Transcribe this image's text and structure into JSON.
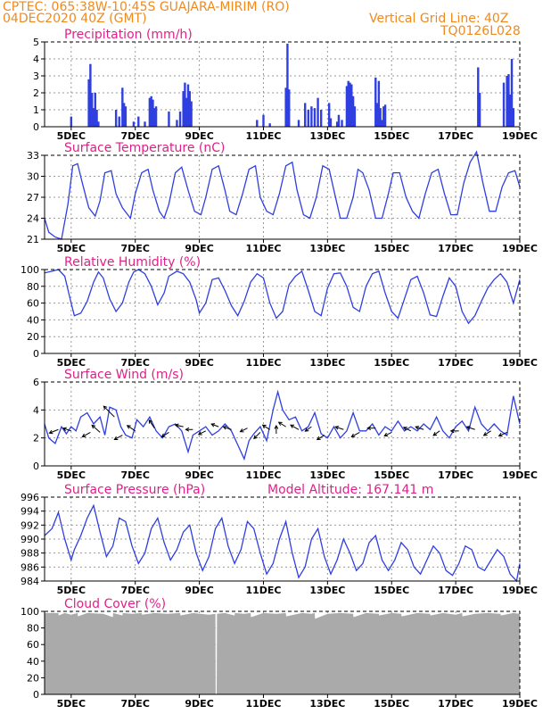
{
  "header": {
    "line1_left": "CPTEC:   065:38W-10:45S   GUAJARA-MIRIM (RO)",
    "line2_left": "04DEC2020 40Z (GMT)",
    "line2_right": "Vertical Grid Line: 40Z",
    "line3_right": "TQ0126L028"
  },
  "colors": {
    "header": "#f08a1c",
    "title": "#e0208a",
    "series": "#2f3fe0",
    "cloud": "#aaaaaa",
    "grid": "#9a9a9a"
  },
  "x_axis": {
    "labels": [
      "5DEC",
      "7DEC",
      "9DEC",
      "11DEC",
      "13DEC",
      "15DEC",
      "17DEC",
      "19DEC"
    ],
    "positions": [
      5,
      7,
      9,
      11,
      13,
      15,
      17,
      19
    ],
    "range": [
      4.17,
      19.0
    ]
  },
  "chart_data": [
    {
      "id": "precip",
      "type": "bar",
      "title": "Precipitation (mm/h)",
      "ylim": [
        0,
        5
      ],
      "yticks": [
        0,
        1,
        2,
        3,
        4,
        5
      ],
      "x": [
        5.0,
        5.55,
        5.6,
        5.65,
        5.7,
        5.75,
        5.8,
        5.85,
        6.4,
        6.5,
        6.6,
        6.65,
        6.7,
        6.95,
        7.1,
        7.3,
        7.45,
        7.5,
        7.55,
        7.6,
        7.65,
        8.05,
        8.3,
        8.4,
        8.5,
        8.55,
        8.6,
        8.65,
        8.7,
        8.75,
        10.8,
        11.0,
        11.2,
        11.7,
        11.75,
        11.8,
        12.1,
        12.3,
        12.4,
        12.5,
        12.6,
        12.7,
        12.8,
        13.05,
        13.1,
        13.3,
        13.35,
        13.45,
        13.6,
        13.65,
        13.7,
        13.75,
        13.8,
        13.85,
        14.5,
        14.55,
        14.6,
        14.65,
        14.7,
        14.75,
        14.8,
        17.7,
        17.75,
        18.5,
        18.6,
        18.65,
        18.7,
        18.75,
        18.8
      ],
      "values": [
        0.6,
        2.8,
        3.7,
        2.0,
        1.1,
        2.0,
        1.0,
        0.3,
        1.0,
        0.6,
        2.3,
        1.4,
        1.2,
        0.3,
        0.6,
        0.3,
        1.7,
        1.8,
        1.6,
        1.1,
        1.2,
        0.9,
        0.4,
        0.9,
        2.1,
        2.6,
        1.7,
        2.5,
        2.1,
        1.5,
        0.4,
        0.7,
        0.2,
        2.3,
        4.9,
        2.2,
        0.4,
        1.4,
        1.0,
        1.2,
        1.1,
        1.7,
        1.0,
        1.4,
        0.5,
        0.3,
        0.7,
        0.4,
        2.4,
        2.7,
        2.6,
        2.5,
        1.8,
        1.2,
        2.9,
        1.4,
        2.7,
        1.1,
        0.4,
        1.2,
        1.3,
        3.5,
        2.0,
        2.6,
        3.0,
        3.1,
        1.9,
        4.0,
        1.1
      ]
    },
    {
      "id": "temp",
      "type": "line",
      "title": "Surface Temperature (nC)",
      "ylim": [
        21,
        33
      ],
      "yticks": [
        21,
        24,
        27,
        30,
        33
      ],
      "x": [
        4.17,
        4.3,
        4.5,
        4.7,
        4.9,
        5.05,
        5.2,
        5.35,
        5.55,
        5.75,
        5.9,
        6.05,
        6.25,
        6.4,
        6.6,
        6.85,
        7.0,
        7.2,
        7.4,
        7.55,
        7.75,
        7.9,
        8.05,
        8.25,
        8.45,
        8.65,
        8.85,
        9.05,
        9.2,
        9.4,
        9.6,
        9.8,
        9.95,
        10.15,
        10.35,
        10.55,
        10.75,
        10.9,
        11.1,
        11.3,
        11.5,
        11.7,
        11.9,
        12.05,
        12.25,
        12.45,
        12.65,
        12.85,
        13.05,
        13.2,
        13.4,
        13.6,
        13.8,
        13.95,
        14.1,
        14.3,
        14.5,
        14.7,
        14.9,
        15.05,
        15.25,
        15.45,
        15.65,
        15.85,
        16.05,
        16.25,
        16.45,
        16.65,
        16.85,
        17.05,
        17.25,
        17.45,
        17.65,
        17.85,
        18.05,
        18.25,
        18.45,
        18.65,
        18.85,
        19.0
      ],
      "values": [
        24.0,
        22.0,
        21.3,
        21.0,
        26.0,
        31.5,
        31.8,
        29.0,
        25.5,
        24.3,
        26.5,
        30.5,
        30.8,
        27.5,
        25.5,
        24.0,
        27.5,
        30.5,
        31.0,
        28.0,
        25.0,
        24.0,
        26.0,
        30.5,
        31.3,
        28.0,
        25.0,
        24.5,
        27.0,
        31.0,
        31.5,
        28.0,
        25.0,
        24.5,
        27.5,
        31.0,
        31.5,
        27.0,
        25.0,
        24.5,
        27.5,
        31.5,
        32.0,
        28.0,
        24.5,
        24.0,
        27.0,
        31.5,
        31.0,
        28.0,
        24.0,
        24.0,
        27.0,
        31.0,
        30.5,
        28.0,
        24.0,
        24.0,
        27.5,
        30.5,
        30.5,
        27.0,
        25.0,
        24.0,
        27.5,
        30.5,
        31.0,
        27.5,
        24.5,
        24.5,
        29.0,
        32.0,
        33.5,
        29.0,
        25.0,
        25.0,
        28.5,
        30.5,
        30.8,
        28.5
      ]
    },
    {
      "id": "rh",
      "type": "line",
      "title": "Relative Humidity (%)",
      "ylim": [
        0,
        100
      ],
      "yticks": [
        0,
        20,
        40,
        60,
        80,
        100
      ],
      "x": [
        4.17,
        4.4,
        4.6,
        4.8,
        5.0,
        5.1,
        5.3,
        5.5,
        5.7,
        5.85,
        6.0,
        6.2,
        6.4,
        6.6,
        6.8,
        6.95,
        7.1,
        7.3,
        7.5,
        7.7,
        7.9,
        8.05,
        8.3,
        8.5,
        8.7,
        8.9,
        9.0,
        9.2,
        9.4,
        9.6,
        9.8,
        10.0,
        10.2,
        10.4,
        10.6,
        10.8,
        11.0,
        11.2,
        11.4,
        11.6,
        11.8,
        12.0,
        12.2,
        12.4,
        12.6,
        12.8,
        13.0,
        13.2,
        13.4,
        13.6,
        13.8,
        14.0,
        14.2,
        14.4,
        14.6,
        14.8,
        15.0,
        15.2,
        15.4,
        15.6,
        15.8,
        16.0,
        16.2,
        16.4,
        16.6,
        16.8,
        17.0,
        17.2,
        17.4,
        17.6,
        17.8,
        18.0,
        18.2,
        18.4,
        18.6,
        18.8,
        19.0
      ],
      "values": [
        96,
        98,
        100,
        92,
        60,
        45,
        48,
        62,
        85,
        97,
        90,
        65,
        50,
        60,
        85,
        97,
        100,
        95,
        80,
        58,
        72,
        92,
        98,
        95,
        85,
        64,
        48,
        60,
        88,
        90,
        75,
        57,
        45,
        62,
        85,
        95,
        90,
        60,
        42,
        50,
        82,
        92,
        98,
        75,
        50,
        45,
        78,
        95,
        96,
        80,
        55,
        50,
        80,
        95,
        98,
        72,
        50,
        42,
        65,
        88,
        92,
        72,
        46,
        44,
        68,
        90,
        80,
        50,
        36,
        45,
        62,
        78,
        88,
        95,
        85,
        60,
        88
      ]
    },
    {
      "id": "wind",
      "type": "line",
      "title": "Surface Wind (m/s)",
      "ylim": [
        0,
        6
      ],
      "yticks": [
        0,
        2,
        4,
        6
      ],
      "x": [
        4.17,
        4.3,
        4.5,
        4.7,
        4.85,
        5.0,
        5.15,
        5.3,
        5.5,
        5.7,
        5.9,
        6.05,
        6.2,
        6.4,
        6.55,
        6.7,
        6.9,
        7.05,
        7.25,
        7.45,
        7.65,
        7.85,
        8.05,
        8.25,
        8.45,
        8.65,
        8.8,
        9.0,
        9.2,
        9.4,
        9.6,
        9.8,
        10.0,
        10.2,
        10.4,
        10.55,
        10.7,
        10.9,
        11.1,
        11.3,
        11.45,
        11.6,
        11.8,
        12.0,
        12.2,
        12.4,
        12.6,
        12.8,
        13.0,
        13.2,
        13.4,
        13.6,
        13.8,
        14.0,
        14.2,
        14.4,
        14.6,
        14.8,
        15.0,
        15.2,
        15.4,
        15.6,
        15.8,
        16.0,
        16.2,
        16.4,
        16.6,
        16.8,
        17.0,
        17.2,
        17.4,
        17.6,
        17.8,
        18.0,
        18.2,
        18.4,
        18.6,
        18.8,
        19.0
      ],
      "values": [
        3.0,
        2.0,
        1.6,
        2.8,
        2.3,
        2.8,
        2.5,
        3.5,
        3.8,
        3.0,
        3.5,
        2.2,
        4.2,
        4.0,
        2.8,
        2.2,
        2.0,
        3.3,
        2.8,
        3.5,
        2.5,
        2.0,
        2.8,
        3.0,
        2.5,
        1.0,
        2.2,
        2.5,
        2.8,
        2.2,
        2.5,
        3.0,
        2.5,
        1.5,
        0.5,
        1.8,
        2.3,
        2.8,
        1.8,
        4.0,
        5.3,
        4.0,
        3.3,
        3.5,
        2.5,
        2.8,
        3.8,
        2.3,
        2.0,
        2.8,
        2.0,
        2.5,
        3.8,
        2.5,
        2.5,
        3.0,
        2.2,
        2.8,
        2.5,
        3.2,
        2.5,
        2.8,
        2.5,
        3.0,
        2.6,
        3.5,
        2.5,
        2.0,
        2.8,
        3.2,
        2.5,
        4.2,
        3.0,
        2.5,
        3.0,
        2.5,
        2.2,
        5.0,
        3.0
      ]
    },
    {
      "id": "pres",
      "type": "line",
      "title": "Surface Pressure (hPa)",
      "subtitle": "Model Altitude: 167.141 m",
      "ylim": [
        984,
        996
      ],
      "yticks": [
        984,
        986,
        988,
        990,
        992,
        994,
        996
      ],
      "x": [
        4.17,
        4.4,
        4.6,
        4.8,
        5.0,
        5.1,
        5.3,
        5.5,
        5.7,
        5.9,
        6.1,
        6.3,
        6.5,
        6.7,
        6.9,
        7.1,
        7.3,
        7.5,
        7.7,
        7.9,
        8.1,
        8.3,
        8.5,
        8.7,
        8.9,
        9.1,
        9.3,
        9.5,
        9.7,
        9.9,
        10.1,
        10.3,
        10.5,
        10.7,
        10.9,
        11.1,
        11.3,
        11.5,
        11.7,
        11.9,
        12.1,
        12.3,
        12.5,
        12.7,
        12.9,
        13.1,
        13.3,
        13.5,
        13.7,
        13.9,
        14.1,
        14.3,
        14.5,
        14.7,
        14.9,
        15.1,
        15.3,
        15.5,
        15.7,
        15.9,
        16.1,
        16.3,
        16.5,
        16.7,
        16.9,
        17.1,
        17.3,
        17.5,
        17.7,
        17.9,
        18.1,
        18.3,
        18.5,
        18.7,
        18.9,
        19.0
      ],
      "values": [
        990.5,
        991.5,
        993.8,
        990.0,
        987.0,
        988.5,
        990.5,
        993.0,
        994.8,
        991.0,
        987.5,
        989.0,
        993.0,
        992.5,
        989.0,
        986.5,
        988.0,
        991.5,
        993.0,
        989.5,
        987.0,
        988.5,
        991.0,
        992.0,
        988.0,
        985.5,
        987.5,
        991.5,
        993.0,
        989.0,
        986.5,
        988.5,
        992.5,
        991.5,
        988.0,
        985.0,
        986.5,
        990.0,
        992.5,
        988.0,
        984.5,
        986.0,
        990.0,
        991.5,
        987.5,
        985.0,
        987.0,
        990.0,
        988.0,
        985.5,
        986.5,
        989.5,
        990.5,
        987.0,
        985.5,
        987.0,
        989.5,
        988.5,
        986.0,
        985.0,
        987.0,
        989.0,
        988.0,
        985.5,
        984.8,
        986.5,
        989.0,
        988.5,
        986.0,
        985.5,
        987.0,
        988.5,
        987.5,
        985.0,
        984.0,
        986.5
      ]
    },
    {
      "id": "cloud",
      "type": "area",
      "title": "Cloud Cover (%)",
      "ylim": [
        0,
        100
      ],
      "yticks": [
        0,
        20,
        40,
        60,
        80,
        100
      ],
      "x": [
        4.17,
        4.6,
        4.61,
        4.8,
        5.0,
        5.2,
        5.21,
        5.5,
        6.0,
        6.3,
        6.31,
        6.6,
        6.61,
        6.9,
        7.2,
        7.21,
        7.6,
        8.0,
        8.4,
        8.41,
        8.8,
        9.3,
        9.5,
        9.51,
        9.54,
        9.55,
        9.8,
        10.1,
        10.11,
        10.4,
        10.6,
        10.61,
        11.0,
        11.4,
        11.7,
        11.71,
        12.2,
        12.5,
        12.6,
        12.61,
        13.0,
        13.4,
        13.8,
        13.81,
        14.2,
        14.6,
        14.61,
        15.0,
        15.3,
        15.31,
        15.8,
        16.2,
        16.21,
        16.6,
        17.0,
        17.2,
        17.21,
        17.6,
        18.0,
        18.4,
        18.41,
        18.8,
        19.0
      ],
      "values": [
        98,
        98,
        95,
        98,
        96,
        98,
        94,
        98,
        97,
        93,
        98,
        95,
        98,
        97,
        98,
        96,
        98,
        97,
        98,
        95,
        98,
        96,
        97,
        0,
        0,
        97,
        98,
        95,
        98,
        97,
        98,
        93,
        98,
        97,
        98,
        94,
        98,
        97,
        98,
        91,
        97,
        98,
        97,
        93,
        98,
        97,
        95,
        98,
        97,
        94,
        98,
        97,
        95,
        98,
        96,
        98,
        94,
        97,
        98,
        97,
        95,
        98,
        97
      ]
    }
  ]
}
